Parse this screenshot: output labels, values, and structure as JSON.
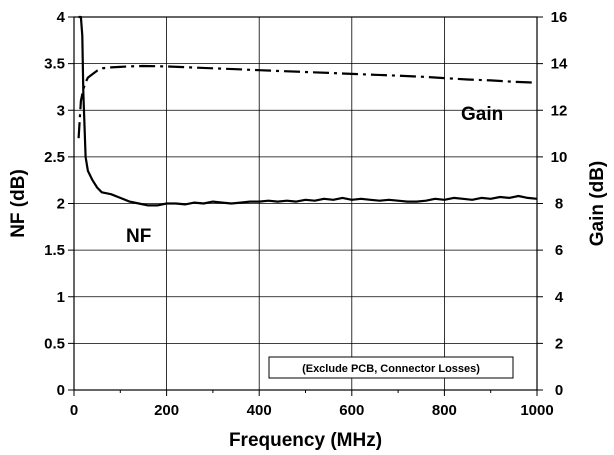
{
  "chart_data": {
    "type": "line",
    "xlabel": "Frequency (MHz)",
    "ylabel_left": "NF (dB)",
    "ylabel_right": "Gain (dB)",
    "xlim": [
      0,
      1000
    ],
    "ylim_left": [
      0,
      4
    ],
    "ylim_right": [
      0,
      16
    ],
    "x_ticks": [
      "0",
      "200",
      "400",
      "600",
      "800",
      "1000"
    ],
    "y_left_ticks": [
      "0",
      "0.5",
      "1",
      "1.5",
      "2",
      "2.5",
      "3",
      "3.5",
      "4"
    ],
    "y_right_ticks": [
      "0",
      "2",
      "4",
      "6",
      "8",
      "10",
      "12",
      "14",
      "16"
    ],
    "grid": true,
    "annotation": "(Exclude PCB, Connector Losses)",
    "colors": {
      "line": "#000000",
      "grid": "#000000",
      "background": "#ffffff"
    },
    "series": [
      {
        "name": "NF",
        "axis": "left",
        "style": "solid",
        "x": [
          10,
          15,
          18,
          20,
          25,
          30,
          40,
          50,
          60,
          80,
          100,
          120,
          140,
          160,
          180,
          200,
          220,
          240,
          260,
          280,
          300,
          320,
          340,
          360,
          380,
          400,
          420,
          440,
          460,
          480,
          500,
          520,
          540,
          560,
          580,
          600,
          620,
          640,
          660,
          680,
          700,
          720,
          740,
          760,
          780,
          800,
          820,
          840,
          860,
          880,
          900,
          920,
          940,
          960,
          980,
          1000
        ],
        "values": [
          4.0,
          4.0,
          3.8,
          3.2,
          2.5,
          2.35,
          2.25,
          2.17,
          2.12,
          2.1,
          2.06,
          2.02,
          2.0,
          1.98,
          1.98,
          2.0,
          2.0,
          1.99,
          2.01,
          2.0,
          2.02,
          2.01,
          2.0,
          2.01,
          2.02,
          2.02,
          2.03,
          2.02,
          2.03,
          2.02,
          2.04,
          2.03,
          2.05,
          2.04,
          2.06,
          2.04,
          2.05,
          2.04,
          2.03,
          2.04,
          2.03,
          2.02,
          2.02,
          2.03,
          2.05,
          2.04,
          2.06,
          2.05,
          2.04,
          2.06,
          2.05,
          2.07,
          2.06,
          2.08,
          2.06,
          2.05
        ]
      },
      {
        "name": "Gain",
        "axis": "right",
        "style": "dash-dot",
        "x": [
          10,
          15,
          20,
          25,
          30,
          40,
          50,
          60,
          80,
          100,
          120,
          150,
          200,
          250,
          300,
          350,
          400,
          450,
          500,
          550,
          600,
          650,
          700,
          750,
          800,
          850,
          900,
          950,
          1000
        ],
        "values": [
          10.8,
          12.4,
          12.9,
          13.2,
          13.4,
          13.55,
          13.7,
          13.8,
          13.84,
          13.86,
          13.88,
          13.9,
          13.88,
          13.84,
          13.8,
          13.76,
          13.72,
          13.68,
          13.64,
          13.6,
          13.56,
          13.52,
          13.48,
          13.44,
          13.38,
          13.32,
          13.28,
          13.22,
          13.18
        ]
      }
    ]
  }
}
